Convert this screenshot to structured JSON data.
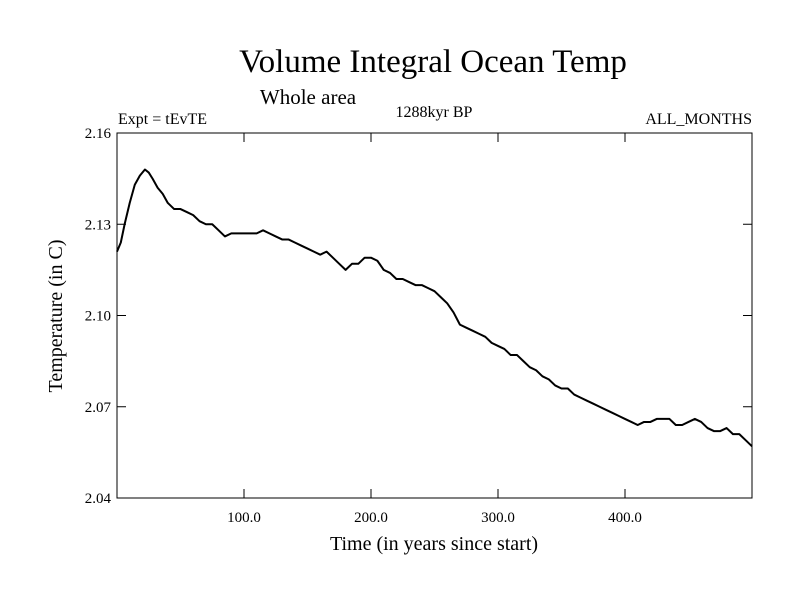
{
  "chart_data": {
    "type": "line",
    "title": "Volume Integral Ocean Temp",
    "subtitle": "Whole area",
    "annotations": {
      "left": "Expt = tEvTE",
      "center": "1288kyr BP",
      "right": "ALL_MONTHS"
    },
    "xlabel": "Time (in years since start)",
    "ylabel": "Temperature (in C)",
    "xlim": [
      0,
      500
    ],
    "ylim": [
      2.04,
      2.16
    ],
    "xticks": [
      100,
      200,
      300,
      400
    ],
    "xtick_labels": [
      "100.0",
      "200.0",
      "300.0",
      "400.0"
    ],
    "yticks": [
      2.04,
      2.07,
      2.1,
      2.13,
      2.16
    ],
    "ytick_labels": [
      "2.04",
      "2.07",
      "2.10",
      "2.13",
      "2.16"
    ],
    "grid": false,
    "series": [
      {
        "name": "Volume Integral Ocean Temp",
        "color": "#000000",
        "x": [
          0,
          3,
          6,
          10,
          14,
          18,
          22,
          25,
          28,
          32,
          36,
          40,
          45,
          50,
          55,
          60,
          65,
          70,
          75,
          80,
          85,
          90,
          95,
          100,
          105,
          110,
          115,
          120,
          125,
          130,
          135,
          140,
          145,
          150,
          155,
          160,
          165,
          170,
          175,
          180,
          185,
          190,
          195,
          200,
          205,
          210,
          215,
          220,
          225,
          230,
          235,
          240,
          245,
          250,
          255,
          260,
          265,
          270,
          275,
          280,
          285,
          290,
          295,
          300,
          305,
          310,
          315,
          320,
          325,
          330,
          335,
          340,
          345,
          350,
          355,
          360,
          365,
          370,
          375,
          380,
          385,
          390,
          395,
          400,
          405,
          410,
          415,
          420,
          425,
          430,
          435,
          440,
          445,
          450,
          455,
          460,
          465,
          470,
          475,
          480,
          485,
          490,
          495,
          500
        ],
        "values": [
          2.121,
          2.124,
          2.13,
          2.137,
          2.143,
          2.146,
          2.148,
          2.147,
          2.145,
          2.142,
          2.14,
          2.137,
          2.135,
          2.135,
          2.134,
          2.133,
          2.131,
          2.13,
          2.13,
          2.128,
          2.126,
          2.127,
          2.127,
          2.127,
          2.127,
          2.127,
          2.128,
          2.127,
          2.126,
          2.125,
          2.125,
          2.124,
          2.123,
          2.122,
          2.121,
          2.12,
          2.121,
          2.119,
          2.117,
          2.115,
          2.117,
          2.117,
          2.119,
          2.119,
          2.118,
          2.115,
          2.114,
          2.112,
          2.112,
          2.111,
          2.11,
          2.11,
          2.109,
          2.108,
          2.106,
          2.104,
          2.101,
          2.097,
          2.096,
          2.095,
          2.094,
          2.093,
          2.091,
          2.09,
          2.089,
          2.087,
          2.087,
          2.085,
          2.083,
          2.082,
          2.08,
          2.079,
          2.077,
          2.076,
          2.076,
          2.074,
          2.073,
          2.072,
          2.071,
          2.07,
          2.069,
          2.068,
          2.067,
          2.066,
          2.065,
          2.064,
          2.065,
          2.065,
          2.066,
          2.066,
          2.066,
          2.064,
          2.064,
          2.065,
          2.066,
          2.065,
          2.063,
          2.062,
          2.062,
          2.063,
          2.061,
          2.061,
          2.059,
          2.057
        ]
      }
    ]
  }
}
